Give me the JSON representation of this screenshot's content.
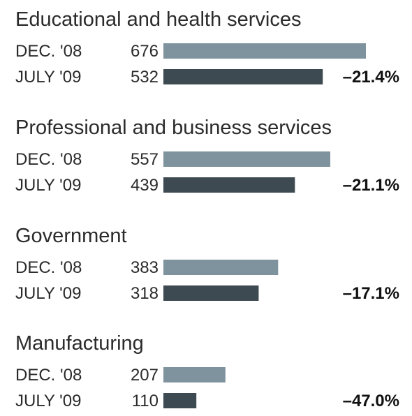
{
  "chart_data": {
    "type": "bar",
    "orientation": "horizontal",
    "period_labels": [
      "DEC. '08",
      "JULY '09"
    ],
    "series_colors": [
      "#7f939e",
      "#3e4a51"
    ],
    "xlim": [
      0,
      676
    ],
    "groups": [
      {
        "title": "Educational and health services",
        "values": [
          676,
          532
        ],
        "change": "–21.4%"
      },
      {
        "title": "Professional and business services",
        "values": [
          557,
          439
        ],
        "change": "–21.1%"
      },
      {
        "title": "Government",
        "values": [
          383,
          318
        ],
        "change": "–17.1%"
      },
      {
        "title": "Manufacturing",
        "values": [
          207,
          110
        ],
        "change": "–47.0%"
      }
    ]
  }
}
